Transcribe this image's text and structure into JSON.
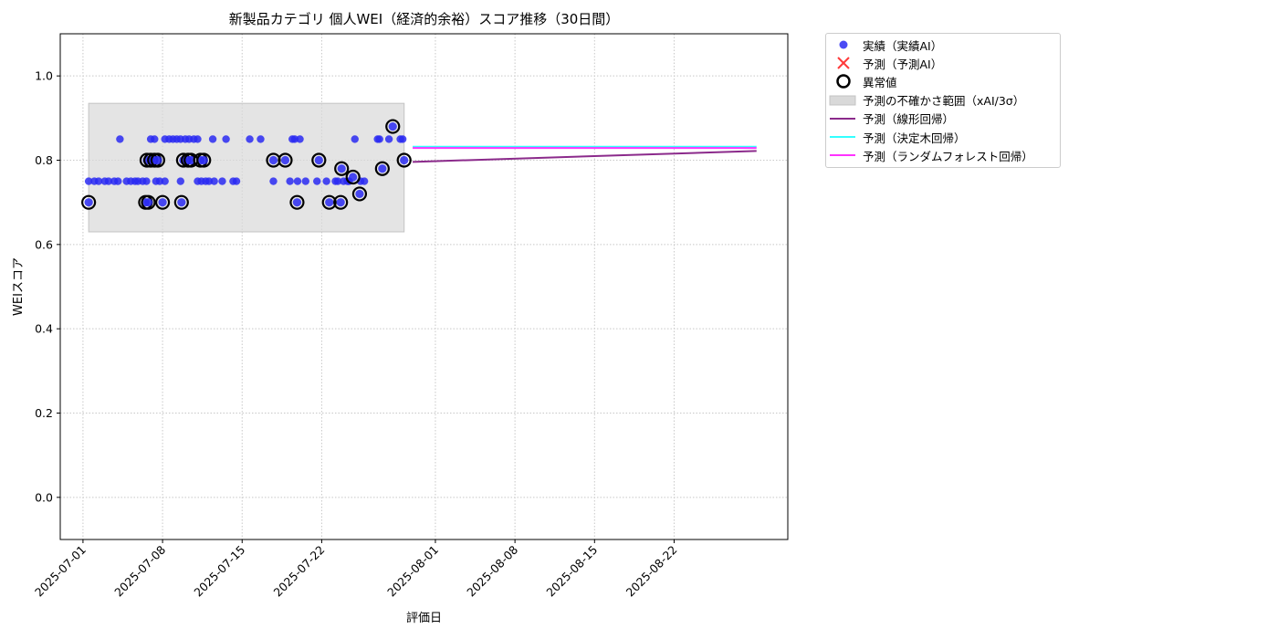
{
  "chart_data": {
    "type": "scatter",
    "title": "新製品カテゴリ 個人WEI（経済的余裕）スコア推移（30日間）",
    "xlabel": "評価日",
    "ylabel": "WEIスコア",
    "xlim": [
      "2025-06-29",
      "2025-09-01"
    ],
    "ylim": [
      -0.1,
      1.1
    ],
    "x_ticks": [
      "2025-07-01",
      "2025-07-08",
      "2025-07-15",
      "2025-07-22",
      "2025-08-01",
      "2025-08-08",
      "2025-08-15",
      "2025-08-22"
    ],
    "y_ticks": [
      "0.0",
      "0.2",
      "0.4",
      "0.6",
      "0.8",
      "1.0"
    ],
    "grid": true,
    "legend_position": "outside-right-top",
    "legend": [
      {
        "label": "実績（実績AI）",
        "kind": "dot",
        "color": "#2a2af2"
      },
      {
        "label": "予測（予測AI）",
        "kind": "x",
        "color": "#ff3a3a"
      },
      {
        "label": "異常値",
        "kind": "ring",
        "color": "#000000"
      },
      {
        "label": "予測の不確かさ範囲（xAI/3σ）",
        "kind": "band",
        "color": "#d9d9d9"
      },
      {
        "label": "予測（線形回帰）",
        "kind": "line",
        "color": "#8b2a8b"
      },
      {
        "label": "予測（決定木回帰）",
        "kind": "line",
        "color": "#33ffff"
      },
      {
        "label": "予測（ランダムフォレスト回帰）",
        "kind": "line",
        "color": "#ff33ff"
      }
    ],
    "uncertainty_band": {
      "x_start": "2025-07-01T12:00",
      "x_end": "2025-07-29T06:00",
      "y_low": 0.63,
      "y_high": 0.935
    },
    "series": [
      {
        "name": "実績（実績AI）",
        "kind": "scatter",
        "color": "#2a2af2",
        "points": [
          [
            "2025-07-01T12:00",
            0.75
          ],
          [
            "2025-07-02T00:00",
            0.75
          ],
          [
            "2025-07-02T09:00",
            0.75
          ],
          [
            "2025-07-02T22:00",
            0.75
          ],
          [
            "2025-07-03T06:00",
            0.75
          ],
          [
            "2025-07-03T18:00",
            0.75
          ],
          [
            "2025-07-04T02:00",
            0.75
          ],
          [
            "2025-07-04T06:00",
            0.85
          ],
          [
            "2025-07-04T20:00",
            0.75
          ],
          [
            "2025-07-05T05:00",
            0.75
          ],
          [
            "2025-07-05T14:00",
            0.75
          ],
          [
            "2025-07-05T20:00",
            0.75
          ],
          [
            "2025-07-06T06:00",
            0.75
          ],
          [
            "2025-07-06T14:00",
            0.75
          ],
          [
            "2025-07-06T23:00",
            0.85
          ],
          [
            "2025-07-07T07:00",
            0.85
          ],
          [
            "2025-07-07T10:00",
            0.75
          ],
          [
            "2025-07-07T18:00",
            0.75
          ],
          [
            "2025-07-08T05:00",
            0.75
          ],
          [
            "2025-07-08T05:00",
            0.85
          ],
          [
            "2025-07-08T14:00",
            0.85
          ],
          [
            "2025-07-08T22:00",
            0.85
          ],
          [
            "2025-07-09T06:00",
            0.85
          ],
          [
            "2025-07-09T14:00",
            0.85
          ],
          [
            "2025-07-09T14:00",
            0.75
          ],
          [
            "2025-07-10T00:00",
            0.85
          ],
          [
            "2025-07-10T08:00",
            0.85
          ],
          [
            "2025-07-10T18:00",
            0.85
          ],
          [
            "2025-07-11T02:00",
            0.85
          ],
          [
            "2025-07-11T02:00",
            0.75
          ],
          [
            "2025-07-11T10:00",
            0.75
          ],
          [
            "2025-07-11T19:00",
            0.75
          ],
          [
            "2025-07-12T02:00",
            0.75
          ],
          [
            "2025-07-12T10:00",
            0.85
          ],
          [
            "2025-07-12T13:00",
            0.75
          ],
          [
            "2025-07-13T06:00",
            0.75
          ],
          [
            "2025-07-13T14:00",
            0.85
          ],
          [
            "2025-07-14T05:00",
            0.75
          ],
          [
            "2025-07-14T12:00",
            0.75
          ],
          [
            "2025-07-15T16:00",
            0.85
          ],
          [
            "2025-07-16T15:00",
            0.85
          ],
          [
            "2025-07-17T18:00",
            0.75
          ],
          [
            "2025-07-19T10:00",
            0.85
          ],
          [
            "2025-07-19T15:00",
            0.85
          ],
          [
            "2025-07-19T05:00",
            0.75
          ],
          [
            "2025-07-19T21:00",
            0.75
          ],
          [
            "2025-07-20T02:00",
            0.85
          ],
          [
            "2025-07-20T14:00",
            0.75
          ],
          [
            "2025-07-21T14:00",
            0.75
          ],
          [
            "2025-07-22T10:00",
            0.75
          ],
          [
            "2025-07-23T05:00",
            0.75
          ],
          [
            "2025-07-23T10:00",
            0.75
          ],
          [
            "2025-07-23T22:00",
            0.75
          ],
          [
            "2025-07-24T06:00",
            0.75
          ],
          [
            "2025-07-24T10:00",
            0.75
          ],
          [
            "2025-07-24T22:00",
            0.85
          ],
          [
            "2025-07-25T10:00",
            0.75
          ],
          [
            "2025-07-25T18:00",
            0.75
          ],
          [
            "2025-07-26T22:00",
            0.85
          ],
          [
            "2025-07-27T02:00",
            0.85
          ],
          [
            "2025-07-27T22:00",
            0.85
          ],
          [
            "2025-07-28T22:00",
            0.85
          ],
          [
            "2025-07-29T03:00",
            0.85
          ]
        ]
      },
      {
        "name": "異常値",
        "kind": "scatter",
        "color": "#2a2af2",
        "outline": "#000000",
        "points": [
          [
            "2025-07-01T12:00",
            0.7
          ],
          [
            "2025-07-06T12:00",
            0.7
          ],
          [
            "2025-07-06T18:00",
            0.7
          ],
          [
            "2025-07-06T15:00",
            0.8
          ],
          [
            "2025-07-06T23:00",
            0.8
          ],
          [
            "2025-07-07T07:00",
            0.8
          ],
          [
            "2025-07-07T14:00",
            0.8
          ],
          [
            "2025-07-08T00:00",
            0.7
          ],
          [
            "2025-07-09T16:00",
            0.7
          ],
          [
            "2025-07-09T20:00",
            0.8
          ],
          [
            "2025-07-10T06:00",
            0.8
          ],
          [
            "2025-07-10T12:00",
            0.8
          ],
          [
            "2025-07-11T08:00",
            0.8
          ],
          [
            "2025-07-11T15:00",
            0.8
          ],
          [
            "2025-07-17T18:00",
            0.8
          ],
          [
            "2025-07-18T19:00",
            0.8
          ],
          [
            "2025-07-19T20:00",
            0.7
          ],
          [
            "2025-07-21T18:00",
            0.8
          ],
          [
            "2025-07-22T16:00",
            0.7
          ],
          [
            "2025-07-23T16:00",
            0.7
          ],
          [
            "2025-07-23T18:00",
            0.78
          ],
          [
            "2025-07-24T18:00",
            0.76
          ],
          [
            "2025-07-25T08:00",
            0.72
          ],
          [
            "2025-07-27T08:00",
            0.78
          ],
          [
            "2025-07-28T06:00",
            0.88
          ],
          [
            "2025-07-29T06:00",
            0.8
          ]
        ]
      },
      {
        "name": "予測（線形回帰）",
        "kind": "line",
        "color": "#8b2a8b",
        "points": [
          [
            "2025-07-30T00:00",
            0.796
          ],
          [
            "2025-08-29T06:00",
            0.822
          ]
        ]
      },
      {
        "name": "予測（決定木回帰）",
        "kind": "line",
        "color": "#33ffff",
        "points": [
          [
            "2025-07-30T00:00",
            0.832
          ],
          [
            "2025-08-29T06:00",
            0.832
          ]
        ]
      },
      {
        "name": "予測（ランダムフォレスト回帰）",
        "kind": "line",
        "color": "#ff33ff",
        "points": [
          [
            "2025-07-30T00:00",
            0.829
          ],
          [
            "2025-08-29T06:00",
            0.829
          ]
        ]
      }
    ]
  }
}
